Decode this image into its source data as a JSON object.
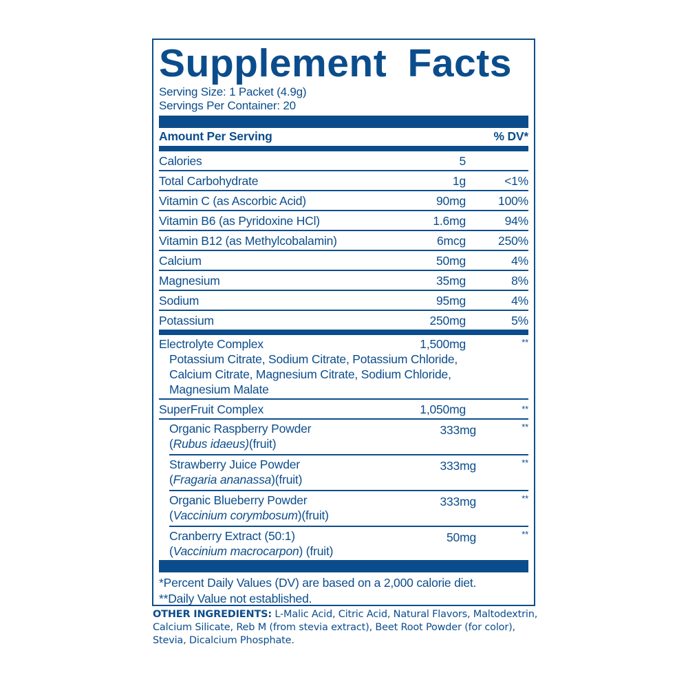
{
  "title": "Supplement Facts",
  "serving_size": "Serving Size: 1 Packet (4.9g)",
  "servings_per_container": "Servings Per Container: 20",
  "header": {
    "amount_per_serving": "Amount Per Serving",
    "dv": "% DV*"
  },
  "nutrients": [
    {
      "name": "Calories",
      "amount": "5",
      "dv": ""
    },
    {
      "name": "Total Carbohydrate",
      "amount": "1g",
      "dv": "<1%"
    },
    {
      "name": "Vitamin C (as Ascorbic Acid)",
      "amount": "90mg",
      "dv": "100%"
    },
    {
      "name": "Vitamin B6 (as Pyridoxine HCl)",
      "amount": "1.6mg",
      "dv": "94%"
    },
    {
      "name": "Vitamin B12 (as Methylcobalamin)",
      "amount": "6mcg",
      "dv": "250%"
    },
    {
      "name": "Calcium",
      "amount": "50mg",
      "dv": "4%"
    },
    {
      "name": "Magnesium",
      "amount": "35mg",
      "dv": "8%"
    },
    {
      "name": "Sodium",
      "amount": "95mg",
      "dv": "4%"
    },
    {
      "name": "Potassium",
      "amount": "250mg",
      "dv": "5%"
    }
  ],
  "electrolyte": {
    "name": "Electrolyte Complex",
    "amount": "1,500mg",
    "dv": "**",
    "ingredients": [
      "Potassium Citrate, Sodium Citrate, Potassium Chloride,",
      "Calcium Citrate, Magnesium Citrate, Sodium Chloride,",
      "Magnesium Malate"
    ]
  },
  "superfruit": {
    "name": "SuperFruit Complex",
    "amount": "1,050mg",
    "dv": "**",
    "items": [
      {
        "name": "Organic Raspberry Powder",
        "prefix": "(",
        "latin": "Rubus idaeus)",
        "suffix": "(fruit)",
        "amount": "333mg",
        "dv": "**"
      },
      {
        "name": "Strawberry Juice Powder",
        "prefix": "(",
        "latin": "Fragaria ananassa",
        "suffix": ")(fruit)",
        "amount": "333mg",
        "dv": "**"
      },
      {
        "name": "Organic Blueberry Powder",
        "prefix": "(",
        "latin": "Vaccinium corymbosum",
        "suffix": ")(fruit)",
        "amount": "333mg",
        "dv": "**"
      },
      {
        "name": "Cranberry Extract (50:1)",
        "prefix": "(",
        "latin": "Vaccinium macrocarpon",
        "suffix": ") (fruit)",
        "amount": "50mg",
        "dv": "**"
      }
    ]
  },
  "footnotes": [
    "*Percent Daily Values (DV) are based on a 2,000 calorie diet.",
    "**Daily Value not established."
  ],
  "other_ingredients": {
    "label": "OTHER INGREDIENTS:",
    "text": " L-Malic Acid, Citric Acid, Natural Flavors, Maltodextrin, Calcium Silicate, Reb M (from stevia extract), Beet Root Powder (for color), Stevia, Dicalcium Phosphate."
  },
  "colors": {
    "brand_blue": "#0b4d8c",
    "background": "#ffffff"
  }
}
